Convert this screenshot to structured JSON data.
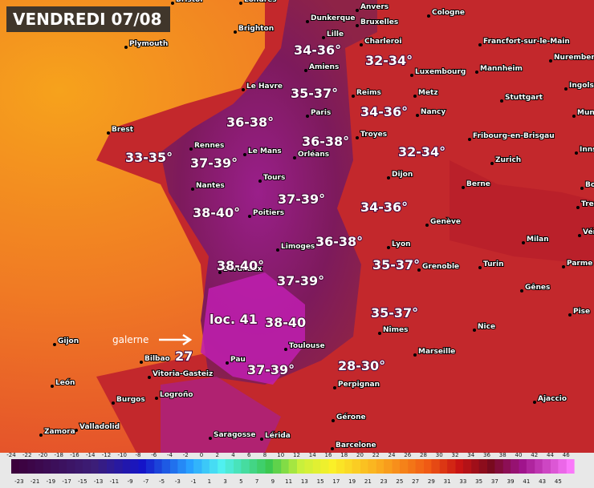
{
  "header": {
    "title": "VENDREDI 07/08"
  },
  "cities": [
    "Bristol",
    "Londres",
    "Dunkerque",
    "Anvers",
    "Cologne",
    "Brighton",
    "Bruxelles",
    "Lille",
    "Charleroi",
    "Francfort-sur-le-Main",
    "Plymouth",
    "Nuremberg",
    "Amiens",
    "Luxembourg",
    "Mannheim",
    "Le Havre",
    "Reims",
    "Metz",
    "Ingolstadt",
    "Stuttgart",
    "Paris",
    "Nancy",
    "Munich",
    "Brest",
    "Troyes",
    "Fribourg-en-Brisgau",
    "Rennes",
    "Le Mans",
    "Orléans",
    "Innsbruck",
    "Zurich",
    "Dijon",
    "Tours",
    "Nantes",
    "Berne",
    "Bolzano",
    "Poitiers",
    "Genève",
    "Trente",
    "Lyon",
    "Milan",
    "Vérone",
    "Limoges",
    "Grenoble",
    "Turin",
    "Parme",
    "Gênes",
    "Bordeaux",
    "Pise",
    "Nice",
    "Nîmes",
    "Gijon",
    "Toulouse",
    "Marseille",
    "Bilbao",
    "Pau",
    "Vitoria-Gasteiz",
    "León",
    "Perpignan",
    "Burgos",
    "Logroño",
    "Ajaccio",
    "Gérone",
    "Zamora",
    "Valladolid",
    "Saragosse",
    "Lérida",
    "Barcelone"
  ],
  "temperatures": [
    "34-36°",
    "32-34°",
    "35-37°",
    "34-36°",
    "36-38°",
    "36-38°",
    "33-35°",
    "32-34°",
    "37-39°",
    "37-39°",
    "34-36°",
    "38-40°",
    "36-38°",
    "38-40°",
    "35-37°",
    "37-39°",
    "35-37°",
    "loc. 41",
    "38-40",
    "28-30°",
    "37-39°"
  ],
  "annotations": {
    "galerne": "galerne",
    "value": "27"
  },
  "legend": {
    "top": [
      -24,
      -22,
      -20,
      -18,
      -16,
      -14,
      -12,
      -10,
      -8,
      -6,
      -4,
      -2,
      0,
      2,
      4,
      6,
      8,
      10,
      12,
      14,
      16,
      18,
      20,
      22,
      24,
      26,
      28,
      30,
      32,
      34,
      36,
      38,
      40,
      42,
      44,
      46
    ],
    "bottom": [
      -23,
      -21,
      -19,
      -17,
      -15,
      -13,
      -11,
      -9,
      -7,
      -5,
      -3,
      -1,
      1,
      3,
      5,
      7,
      9,
      11,
      13,
      15,
      17,
      19,
      21,
      23,
      25,
      27,
      29,
      31,
      33,
      35,
      37,
      39,
      41,
      43,
      45
    ]
  }
}
